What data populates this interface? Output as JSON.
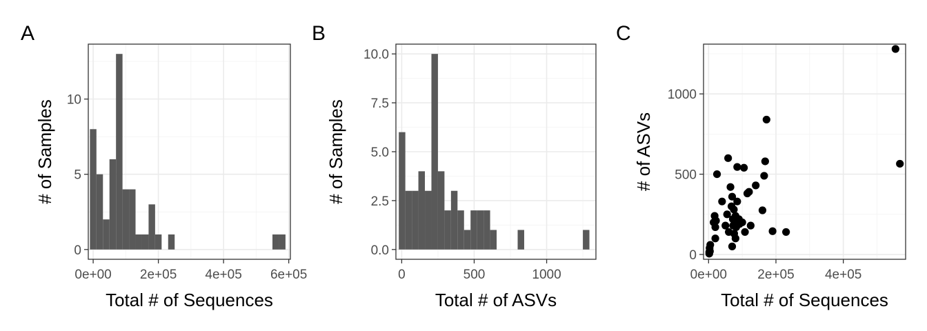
{
  "chart_data": [
    {
      "panel": "A",
      "type": "bar",
      "xlabel": "Total # of Sequences",
      "ylabel": "# of Samples",
      "xlim": [
        -15000,
        605000
      ],
      "ylim": [
        -0.65,
        13.65
      ],
      "xticks": [
        0,
        200000,
        400000,
        600000
      ],
      "xtick_labels": [
        "0e+00",
        "2e+05",
        "4e+05",
        "6e+05"
      ],
      "yticks": [
        0,
        5,
        10
      ],
      "ytick_labels": [
        "0",
        "5",
        "10"
      ],
      "bin_width": 20000,
      "bins": [
        {
          "x0": -10000,
          "x1": 10000,
          "count": 8
        },
        {
          "x0": 10000,
          "x1": 30000,
          "count": 5
        },
        {
          "x0": 30000,
          "x1": 50000,
          "count": 2
        },
        {
          "x0": 50000,
          "x1": 70000,
          "count": 6
        },
        {
          "x0": 70000,
          "x1": 90000,
          "count": 13
        },
        {
          "x0": 90000,
          "x1": 110000,
          "count": 4
        },
        {
          "x0": 110000,
          "x1": 130000,
          "count": 4
        },
        {
          "x0": 130000,
          "x1": 150000,
          "count": 1
        },
        {
          "x0": 150000,
          "x1": 170000,
          "count": 1
        },
        {
          "x0": 170000,
          "x1": 190000,
          "count": 3
        },
        {
          "x0": 190000,
          "x1": 210000,
          "count": 1
        },
        {
          "x0": 230000,
          "x1": 250000,
          "count": 1
        },
        {
          "x0": 550000,
          "x1": 570000,
          "count": 1
        },
        {
          "x0": 570000,
          "x1": 590000,
          "count": 1
        }
      ],
      "bar_color": "#595959",
      "grid": true
    },
    {
      "panel": "B",
      "type": "bar",
      "xlabel": "Total # of ASVs",
      "ylabel": "# of Samples",
      "xlim": [
        -40,
        1340
      ],
      "ylim": [
        -0.5,
        10.5
      ],
      "xticks": [
        0,
        500,
        1000
      ],
      "xtick_labels": [
        "0",
        "500",
        "1000"
      ],
      "yticks": [
        0,
        2.5,
        5,
        7.5,
        10
      ],
      "ytick_labels": [
        "0.0",
        "2.5",
        "5.0",
        "7.5",
        "10.0"
      ],
      "bin_width": 45,
      "bins": [
        {
          "x0": -20,
          "x1": 25,
          "count": 6
        },
        {
          "x0": 25,
          "x1": 70,
          "count": 3
        },
        {
          "x0": 70,
          "x1": 115,
          "count": 3
        },
        {
          "x0": 115,
          "x1": 160,
          "count": 4
        },
        {
          "x0": 160,
          "x1": 205,
          "count": 3
        },
        {
          "x0": 205,
          "x1": 250,
          "count": 10
        },
        {
          "x0": 250,
          "x1": 295,
          "count": 4
        },
        {
          "x0": 295,
          "x1": 340,
          "count": 2
        },
        {
          "x0": 340,
          "x1": 385,
          "count": 3
        },
        {
          "x0": 385,
          "x1": 430,
          "count": 2
        },
        {
          "x0": 430,
          "x1": 475,
          "count": 1
        },
        {
          "x0": 475,
          "x1": 520,
          "count": 2
        },
        {
          "x0": 520,
          "x1": 565,
          "count": 2
        },
        {
          "x0": 565,
          "x1": 610,
          "count": 2
        },
        {
          "x0": 610,
          "x1": 655,
          "count": 1
        },
        {
          "x0": 800,
          "x1": 845,
          "count": 1
        },
        {
          "x0": 1250,
          "x1": 1295,
          "count": 1
        }
      ],
      "bar_color": "#595959",
      "grid": true
    },
    {
      "panel": "C",
      "type": "scatter",
      "xlabel": "Total # of Sequences",
      "ylabel": "# of ASVs",
      "xlim": [
        -15000,
        585000
      ],
      "ylim": [
        -30,
        1310
      ],
      "xticks": [
        0,
        200000,
        400000
      ],
      "xtick_labels": [
        "0e+00",
        "2e+05",
        "4e+05"
      ],
      "yticks": [
        0,
        500,
        1000
      ],
      "ytick_labels": [
        "0",
        "500",
        "1000"
      ],
      "points": [
        [
          2000,
          5
        ],
        [
          4000,
          20
        ],
        [
          3000,
          40
        ],
        [
          5000,
          60
        ],
        [
          2000,
          15
        ],
        [
          15000,
          200
        ],
        [
          18000,
          240
        ],
        [
          20000,
          170
        ],
        [
          22000,
          210
        ],
        [
          25000,
          500
        ],
        [
          20000,
          100
        ],
        [
          40000,
          330
        ],
        [
          50000,
          180
        ],
        [
          55000,
          250
        ],
        [
          58000,
          600
        ],
        [
          60000,
          140
        ],
        [
          65000,
          420
        ],
        [
          68000,
          300
        ],
        [
          70000,
          360
        ],
        [
          72000,
          220
        ],
        [
          73000,
          180
        ],
        [
          75000,
          280
        ],
        [
          76000,
          130
        ],
        [
          70000,
          50
        ],
        [
          80000,
          100
        ],
        [
          80000,
          240
        ],
        [
          82000,
          170
        ],
        [
          85000,
          330
        ],
        [
          88000,
          210
        ],
        [
          85000,
          545
        ],
        [
          90000,
          220
        ],
        [
          92000,
          190
        ],
        [
          100000,
          200
        ],
        [
          105000,
          540
        ],
        [
          108000,
          140
        ],
        [
          115000,
          380
        ],
        [
          120000,
          390
        ],
        [
          125000,
          180
        ],
        [
          140000,
          430
        ],
        [
          160000,
          275
        ],
        [
          165000,
          490
        ],
        [
          168000,
          580
        ],
        [
          172000,
          840
        ],
        [
          190000,
          145
        ],
        [
          230000,
          140
        ],
        [
          555000,
          1280
        ],
        [
          568000,
          565
        ]
      ],
      "point_color": "#000000",
      "grid": true
    }
  ]
}
